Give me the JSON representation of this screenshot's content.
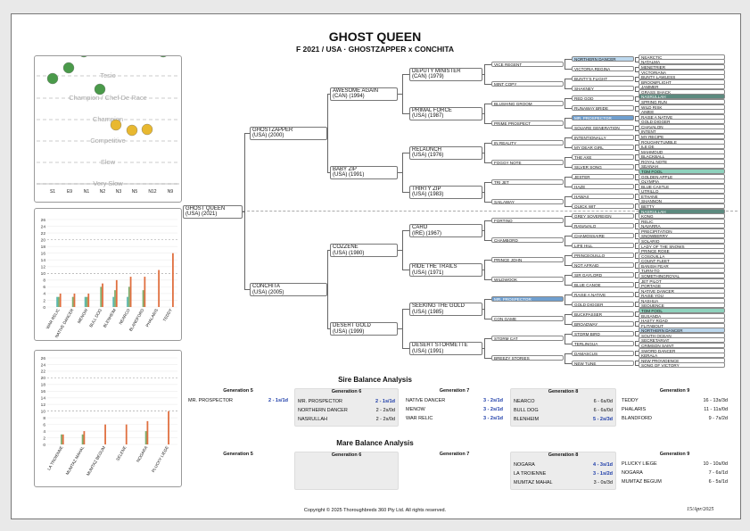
{
  "header": {
    "title": "GHOST QUEEN",
    "subtitle": "F 2021 / USA · GHOSTZAPPER x CONCHITA"
  },
  "rating_chart": {
    "levels": [
      "Tesio",
      "Champion / Chef De Race",
      "Champion",
      "Competitive",
      "Slow",
      "Very Slow"
    ],
    "categories": [
      "S1",
      "E9",
      "N1",
      "N2",
      "N3",
      "N5",
      "N12",
      "N9"
    ],
    "colors": {
      "green": "#4a9a4a",
      "yellow": "#e8b830"
    }
  },
  "chart_data": [
    {
      "type": "bar",
      "categories": [
        "WAR RELIC",
        "NATIVE DANCER",
        "MENOW",
        "BULL DOG",
        "BLENHEIM",
        "NEARCO",
        "BLANDFORD",
        "PHALARIS",
        "TEDDY"
      ],
      "ylim": [
        0,
        26
      ],
      "yticks": [
        0,
        2,
        4,
        6,
        8,
        10,
        12,
        14,
        16,
        18,
        20,
        22,
        24,
        26
      ],
      "series": [
        {
          "color": "#5bb8b0",
          "values": [
            3,
            0,
            3,
            0,
            3,
            3,
            0,
            0,
            0
          ]
        },
        {
          "color": "#7fb070",
          "values": [
            3,
            3,
            3,
            6,
            5,
            6,
            5,
            0,
            0
          ]
        },
        {
          "color": "#e07040",
          "values": [
            4,
            4,
            4,
            7,
            8,
            9,
            9,
            11,
            16
          ]
        }
      ]
    },
    {
      "type": "bar",
      "categories": [
        "LA TROIENNE",
        "MUMTAZ MAHAL",
        "MUMTAZ BEGUM",
        "SELENE",
        "NOGARA",
        "PLUCKY LIEGE"
      ],
      "ylim": [
        0,
        26
      ],
      "yticks": [
        0,
        2,
        4,
        6,
        8,
        10,
        12,
        14,
        16,
        18,
        20,
        22,
        24,
        26
      ],
      "series": [
        {
          "color": "#7fb070",
          "values": [
            3,
            3,
            0,
            0,
            4,
            0
          ]
        },
        {
          "color": "#e07040",
          "values": [
            3,
            4,
            6,
            6,
            7,
            10
          ]
        }
      ]
    }
  ],
  "pedigree": {
    "g1": [
      {
        "n": "GHOST QUEEN",
        "c": "(USA) (2021)"
      }
    ],
    "g2": [
      {
        "n": "GHOSTZAPPER",
        "c": "(USA) (2000)"
      },
      {
        "n": "CONCHITA",
        "c": "(USA) (2005)"
      }
    ],
    "g3": [
      {
        "n": "AWESOME AGAIN",
        "c": "(CAN) (1994)"
      },
      {
        "n": "BABY ZIP",
        "c": "(USA) (1991)"
      },
      {
        "n": "COZZENE",
        "c": "(USA) (1980)"
      },
      {
        "n": "DESERT GOLD",
        "c": "(USA) (1999)"
      }
    ],
    "g4": [
      {
        "n": "DEPUTY MINISTER",
        "c": "(CAN) (1979)"
      },
      {
        "n": "PRIMAL FORCE",
        "c": "(USA) (1987)"
      },
      {
        "n": "RELAUNCH",
        "c": "(USA) (1976)"
      },
      {
        "n": "THIRTY ZIP",
        "c": "(USA) (1983)"
      },
      {
        "n": "CARO",
        "c": "(IRE) (1967)"
      },
      {
        "n": "RIDE THE TRAILS",
        "c": "(USA) (1971)"
      },
      {
        "n": "SEEKING THE GOLD",
        "c": "(USA) (1985)"
      },
      {
        "n": "DESERT STORMETTE",
        "c": "(USA) (1991)"
      }
    ],
    "g5": [
      "VICE REGENT",
      "MINT COPY",
      "BLUSHING GROOM",
      "PRIME PROSPECT",
      "IN REALITY",
      "FOGGY NOTE",
      "TRI JET",
      "SAILAWAY",
      "FORTINO",
      "CHAMBORD",
      "PRINCE JOHN",
      "WILDWOOK",
      "MR. PROSPECTOR",
      "CON GAME",
      "STORM CAT",
      "BREEZY STORIES"
    ],
    "g6": [
      "NORTHERN DANCER",
      "VICTORIA REGINA",
      "BUNTY'S FLIGHT",
      "SHAKNEY",
      "RED GOD",
      "RUNAWAY BRIDE",
      "MR. PROSPECTOR",
      "SQUARE GENERATION",
      "INTENTIONALLY",
      "MY DEAR GIRL",
      "THE AXE",
      "SILVER SONG",
      "JESTER",
      "HAZE",
      "HAWAII",
      "QUICK WIT",
      "GREY SOVEREIGN",
      "RANAVALO",
      "CHAMOSSAIRE",
      "LIFE HILL",
      "PRINCEQUILLO",
      "NOT AFRAID",
      "SIR GAYLORD",
      "BLUE CANOE",
      "RAISE A NATIVE",
      "GOLD DIGGER",
      "BUCKPASSER",
      "BROADWAY",
      "STORM BIRD",
      "TERLINGUA",
      "DAMASCUS",
      "NEW TUNE"
    ],
    "g6hl": {
      "0": "hl-blue",
      "6": "hl-dblue"
    },
    "g7": [
      "NEARCTIC",
      "NATALMA",
      "MENETRIER",
      "VICTORIANA",
      "BUNTY LAWLESS",
      "BROOMFLIGHT",
      "JAMMER",
      "GRASS SHACK",
      "NASRULLAH",
      "SPRING RUN",
      "WILD RISK",
      "AIMEE",
      "RAISE A NATIVE",
      "GOLD DIGGER",
      "CHAVALON",
      "INTENT",
      "MY RECIPE",
      "ROUGHN'TUMBLE",
      "ILE DE",
      "MAHMOUD",
      "BLACKBALL",
      "ROYAL NOTE",
      "SEANAH",
      "TOM FOOL",
      "GOLDEN APPLE",
      "OLYMPIA",
      "BLUE CASTLE",
      "UTRILLO",
      "ETHANE",
      "SHANNON",
      "BETTY",
      "NASRULLAH",
      "KONG",
      "RELIC",
      "NAVARRA",
      "PRECIPITATION",
      "SNOWBERRY",
      "SOLARIO",
      "LADY OF THE SNOWS",
      "PRINCE ROSE",
      "COSQUILLA",
      "COUNT FLEET",
      "BANISH FEAR",
      "TURN-TO",
      "SOMETHINGROYAL",
      "JET PILOT",
      "PORTAGE",
      "NATIVE DANCER",
      "RAISE YOU",
      "NASHUA",
      "SEQUENCE",
      "TOM FOOL",
      "BUSANDA",
      "HASTY ROAD",
      "FLITABOUT",
      "NORTHERN DANCER",
      "SOUTH OCEAN",
      "SECRETARIAT",
      "CRIMSON SAINT",
      "SWORD DANCER",
      "KERALA",
      "NEW PROVIDENCE",
      "SONG OF VICTORY"
    ],
    "g7hl": {
      "8": "hl-dgreen",
      "23": "hl-green",
      "31": "hl-dgreen",
      "51": "hl-green",
      "55": "hl-blue"
    }
  },
  "sire_balance": {
    "title": "Sire Balance Analysis",
    "gens": [
      {
        "label": "Generation 5",
        "rows": [
          [
            "MR. PROSPECTOR",
            "2 - 1s/1d",
            true
          ]
        ]
      },
      {
        "label": "Generation 6",
        "rows": [
          [
            "MR. PROSPECTOR",
            "2 - 1s/1d",
            true
          ],
          [
            "NORTHERN DANCER",
            "2 - 2s/0d",
            false
          ],
          [
            "NASRULLAH",
            "2 - 2s/0d",
            false
          ]
        ]
      },
      {
        "label": "Generation 7",
        "rows": [
          [
            "NATIVE DANCER",
            "3 - 2s/1d",
            true
          ],
          [
            "MENOW",
            "3 - 2s/1d",
            true
          ],
          [
            "WAR RELIC",
            "3 - 2s/1d",
            true
          ]
        ]
      },
      {
        "label": "Generation 8",
        "rows": [
          [
            "NEARCO",
            "6 - 6s/0d",
            false
          ],
          [
            "BULL DOG",
            "6 - 6s/0d",
            false
          ],
          [
            "BLENHEIM",
            "5 - 2s/3d",
            true
          ]
        ]
      },
      {
        "label": "Generation 9",
        "rows": [
          [
            "TEDDY",
            "16 - 13s/3d",
            false
          ],
          [
            "PHALARIS",
            "11 - 11s/0d",
            false
          ],
          [
            "BLANDFORD",
            "9 - 7s/2d",
            false
          ]
        ]
      }
    ]
  },
  "mare_balance": {
    "title": "Mare Balance Analysis",
    "gens": [
      {
        "label": "Generation 5",
        "rows": []
      },
      {
        "label": "Generation 6",
        "rows": []
      },
      {
        "label": "Generation 7",
        "rows": []
      },
      {
        "label": "Generation 8",
        "rows": [
          [
            "NOGARA",
            "4 - 3s/1d",
            true
          ],
          [
            "LA TROIENNE",
            "3 - 1s/2d",
            true
          ],
          [
            "MUMTAZ MAHAL",
            "3 - 0s/3d",
            false
          ]
        ]
      },
      {
        "label": "Generation 9",
        "rows": [
          [
            "PLUCKY LIEGE",
            "10 - 10s/0d",
            false
          ],
          [
            "NOGARA",
            "7 - 6s/1d",
            false
          ],
          [
            "MUMTAZ BEGUM",
            "6 - 5s/1d",
            false
          ]
        ]
      }
    ]
  },
  "footer": {
    "copyright": "Copyright © 2025 Thoroughbreds 360 Pty Ltd. All rights reserved.",
    "date": "15/Apr/2025"
  }
}
